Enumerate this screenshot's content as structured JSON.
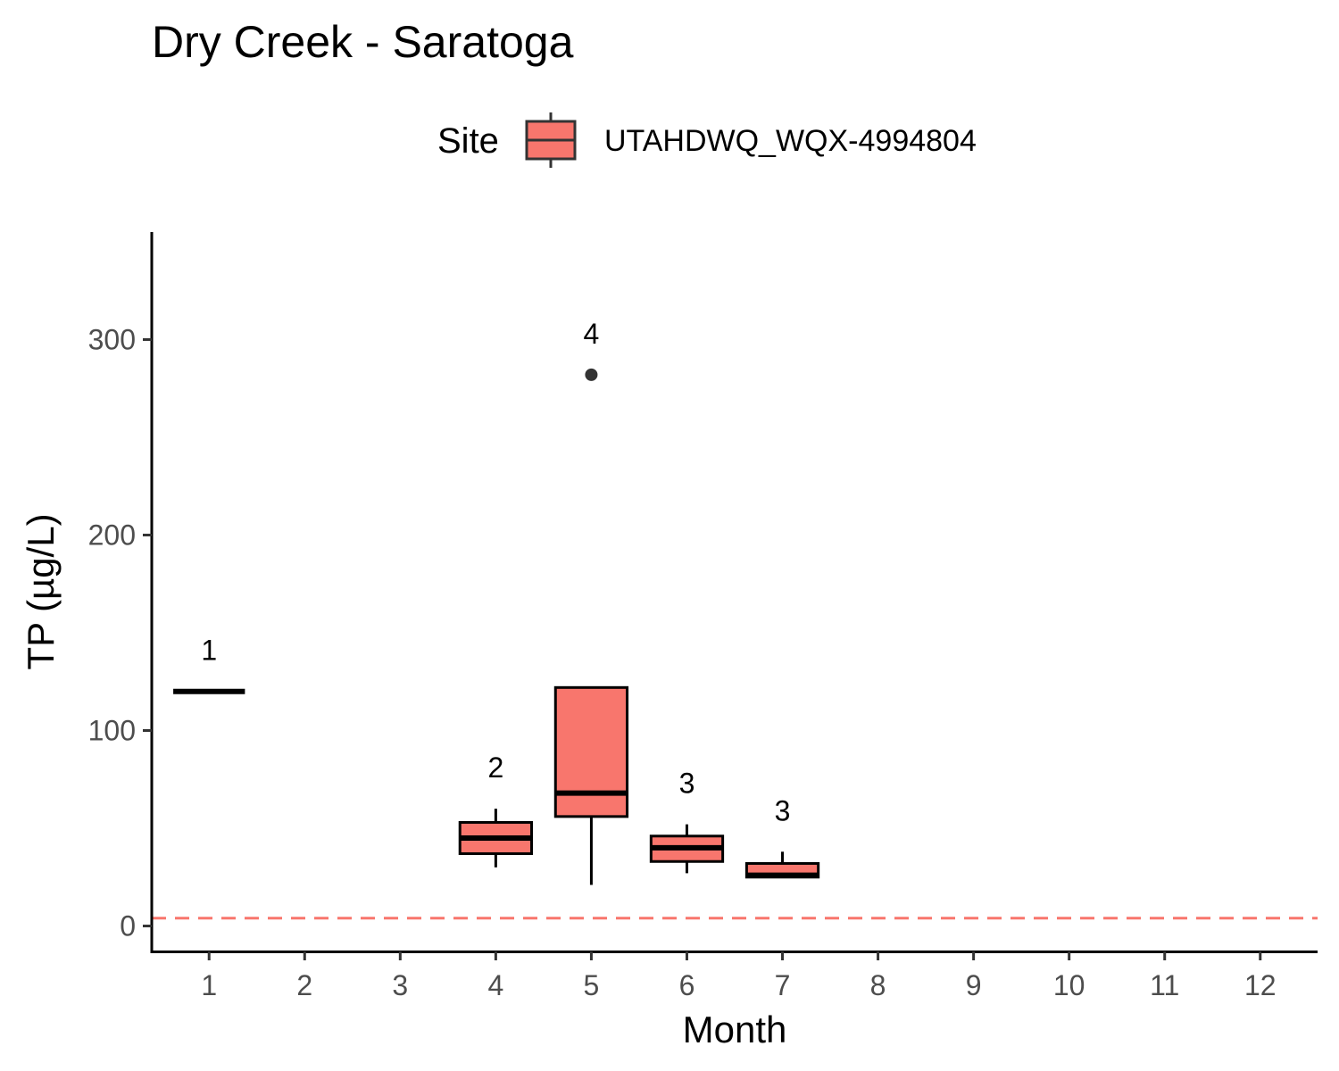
{
  "chart_data": {
    "type": "boxplot",
    "title": "Dry Creek - Saratoga",
    "xlabel": "Month",
    "ylabel": "TP (µg/L)",
    "legend": {
      "title": "Site",
      "position": "top"
    },
    "categories": [
      "1",
      "2",
      "3",
      "4",
      "5",
      "6",
      "7",
      "8",
      "9",
      "10",
      "11",
      "12"
    ],
    "ylim": [
      -13,
      355
    ],
    "yticks": [
      0,
      100,
      200,
      300
    ],
    "grid": false,
    "reference_line": {
      "y": 4,
      "color": "#F8766D",
      "style": "dashed"
    },
    "series": [
      {
        "name": "UTAHDWQ_WQX-4994804",
        "color": "#F8766D",
        "boxes": [
          {
            "month": 1,
            "n": 1,
            "min": 120,
            "q1": 120,
            "median": 120,
            "q3": 120,
            "max": 120,
            "outliers": []
          },
          {
            "month": 4,
            "n": 2,
            "min": 30,
            "q1": 37,
            "median": 45,
            "q3": 53,
            "max": 60,
            "outliers": []
          },
          {
            "month": 5,
            "n": 4,
            "min": 21,
            "q1": 56,
            "median": 68,
            "q3": 122,
            "max": 122,
            "outliers": [
              282
            ]
          },
          {
            "month": 6,
            "n": 3,
            "min": 27,
            "q1": 33,
            "median": 40,
            "q3": 46,
            "max": 52,
            "outliers": []
          },
          {
            "month": 7,
            "n": 3,
            "min": 25,
            "q1": 25,
            "median": 26,
            "q3": 32,
            "max": 38,
            "outliers": []
          }
        ]
      }
    ]
  }
}
